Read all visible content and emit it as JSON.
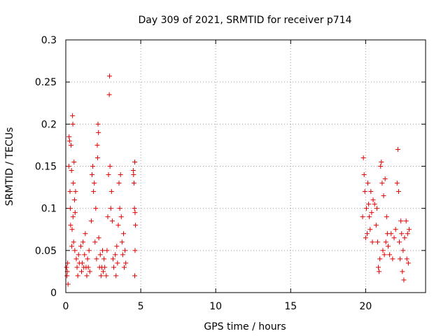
{
  "chart_data": {
    "type": "scatter",
    "title": "Day 309 of 2021, SRMTID for receiver p714",
    "xlabel": "GPS time / hours",
    "ylabel": "SRMTID / TECUs",
    "xlim": [
      0,
      24
    ],
    "ylim": [
      0,
      0.3
    ],
    "xticks": [
      0,
      5,
      10,
      15,
      20
    ],
    "yticks": [
      0,
      0.05,
      0.1,
      0.15,
      0.2,
      0.25,
      0.3
    ],
    "ytick_labels": [
      "0",
      "0.05",
      "0.1",
      "0.15",
      "0.2",
      "0.25",
      "0.3"
    ],
    "grid": true,
    "marker": "+",
    "series_color": "#dd0000",
    "series": [
      {
        "name": "SRMTID",
        "points": [
          [
            0.05,
            0.03
          ],
          [
            0.08,
            0.02
          ],
          [
            0.1,
            0.025
          ],
          [
            0.12,
            0.035
          ],
          [
            0.15,
            0.01
          ],
          [
            0.2,
            0.15
          ],
          [
            0.22,
            0.185
          ],
          [
            0.25,
            0.18
          ],
          [
            0.28,
            0.12
          ],
          [
            0.3,
            0.1
          ],
          [
            0.32,
            0.08
          ],
          [
            0.35,
            0.175
          ],
          [
            0.38,
            0.145
          ],
          [
            0.4,
            0.055
          ],
          [
            0.42,
            0.075
          ],
          [
            0.45,
            0.21
          ],
          [
            0.47,
            0.2
          ],
          [
            0.48,
            0.09
          ],
          [
            0.5,
            0.13
          ],
          [
            0.52,
            0.06
          ],
          [
            0.55,
            0.155
          ],
          [
            0.58,
            0.11
          ],
          [
            0.6,
            0.05
          ],
          [
            0.62,
            0.095
          ],
          [
            0.65,
            0.12
          ],
          [
            0.7,
            0.04
          ],
          [
            0.75,
            0.03
          ],
          [
            0.8,
            0.02
          ],
          [
            0.85,
            0.045
          ],
          [
            0.9,
            0.035
          ],
          [
            1.0,
            0.055
          ],
          [
            1.05,
            0.025
          ],
          [
            1.1,
            0.035
          ],
          [
            1.15,
            0.06
          ],
          [
            1.2,
            0.03
          ],
          [
            1.25,
            0.045
          ],
          [
            1.3,
            0.07
          ],
          [
            1.35,
            0.03
          ],
          [
            1.4,
            0.02
          ],
          [
            1.45,
            0.04
          ],
          [
            1.5,
            0.03
          ],
          [
            1.55,
            0.05
          ],
          [
            1.6,
            0.025
          ],
          [
            1.7,
            0.085
          ],
          [
            1.75,
            0.14
          ],
          [
            1.8,
            0.15
          ],
          [
            1.85,
            0.12
          ],
          [
            1.9,
            0.13
          ],
          [
            1.95,
            0.06
          ],
          [
            2.0,
            0.1
          ],
          [
            2.05,
            0.04
          ],
          [
            2.1,
            0.175
          ],
          [
            2.12,
            0.16
          ],
          [
            2.15,
            0.2
          ],
          [
            2.18,
            0.19
          ],
          [
            2.2,
            0.065
          ],
          [
            2.25,
            0.03
          ],
          [
            2.3,
            0.045
          ],
          [
            2.35,
            0.02
          ],
          [
            2.4,
            0.03
          ],
          [
            2.45,
            0.05
          ],
          [
            2.5,
            0.025
          ],
          [
            2.55,
            0.04
          ],
          [
            2.6,
            0.03
          ],
          [
            2.7,
            0.02
          ],
          [
            2.75,
            0.05
          ],
          [
            2.8,
            0.09
          ],
          [
            2.85,
            0.14
          ],
          [
            2.9,
            0.235
          ],
          [
            2.92,
            0.257
          ],
          [
            2.95,
            0.15
          ],
          [
            3.0,
            0.1
          ],
          [
            3.05,
            0.12
          ],
          [
            3.1,
            0.085
          ],
          [
            3.15,
            0.04
          ],
          [
            3.2,
            0.03
          ],
          [
            3.3,
            0.045
          ],
          [
            3.35,
            0.02
          ],
          [
            3.4,
            0.055
          ],
          [
            3.45,
            0.035
          ],
          [
            3.5,
            0.08
          ],
          [
            3.55,
            0.13
          ],
          [
            3.6,
            0.1
          ],
          [
            3.65,
            0.14
          ],
          [
            3.7,
            0.09
          ],
          [
            3.75,
            0.06
          ],
          [
            3.8,
            0.045
          ],
          [
            3.85,
            0.07
          ],
          [
            3.9,
            0.03
          ],
          [
            3.95,
            0.05
          ],
          [
            4.0,
            0.035
          ],
          [
            4.5,
            0.145
          ],
          [
            4.52,
            0.14
          ],
          [
            4.55,
            0.13
          ],
          [
            4.58,
            0.1
          ],
          [
            4.6,
            0.155
          ],
          [
            4.62,
            0.095
          ],
          [
            4.65,
            0.08
          ],
          [
            4.6,
            0.02
          ],
          [
            4.62,
            0.05
          ],
          [
            19.8,
            0.09
          ],
          [
            19.85,
            0.16
          ],
          [
            19.9,
            0.14
          ],
          [
            19.95,
            0.12
          ],
          [
            20.0,
            0.065
          ],
          [
            20.05,
            0.1
          ],
          [
            20.1,
            0.07
          ],
          [
            20.15,
            0.13
          ],
          [
            20.2,
            0.105
          ],
          [
            20.25,
            0.09
          ],
          [
            20.3,
            0.075
          ],
          [
            20.35,
            0.12
          ],
          [
            20.4,
            0.095
          ],
          [
            20.45,
            0.06
          ],
          [
            20.5,
            0.11
          ],
          [
            20.6,
            0.105
          ],
          [
            20.7,
            0.08
          ],
          [
            20.75,
            0.1
          ],
          [
            20.8,
            0.06
          ],
          [
            20.85,
            0.03
          ],
          [
            20.9,
            0.025
          ],
          [
            20.95,
            0.04
          ],
          [
            21.0,
            0.15
          ],
          [
            21.05,
            0.155
          ],
          [
            21.1,
            0.13
          ],
          [
            21.15,
            0.05
          ],
          [
            21.2,
            0.115
          ],
          [
            21.25,
            0.045
          ],
          [
            21.3,
            0.135
          ],
          [
            21.35,
            0.06
          ],
          [
            21.4,
            0.09
          ],
          [
            21.45,
            0.07
          ],
          [
            21.5,
            0.055
          ],
          [
            21.6,
            0.045
          ],
          [
            21.7,
            0.07
          ],
          [
            21.8,
            0.04
          ],
          [
            21.9,
            0.065
          ],
          [
            22.0,
            0.075
          ],
          [
            22.1,
            0.13
          ],
          [
            22.15,
            0.17
          ],
          [
            22.2,
            0.12
          ],
          [
            22.25,
            0.06
          ],
          [
            22.3,
            0.04
          ],
          [
            22.35,
            0.085
          ],
          [
            22.4,
            0.07
          ],
          [
            22.45,
            0.025
          ],
          [
            22.5,
            0.05
          ],
          [
            22.55,
            0.015
          ],
          [
            22.6,
            0.065
          ],
          [
            22.7,
            0.085
          ],
          [
            22.75,
            0.04
          ],
          [
            22.8,
            0.07
          ],
          [
            22.85,
            0.035
          ],
          [
            22.9,
            0.075
          ]
        ]
      }
    ]
  }
}
